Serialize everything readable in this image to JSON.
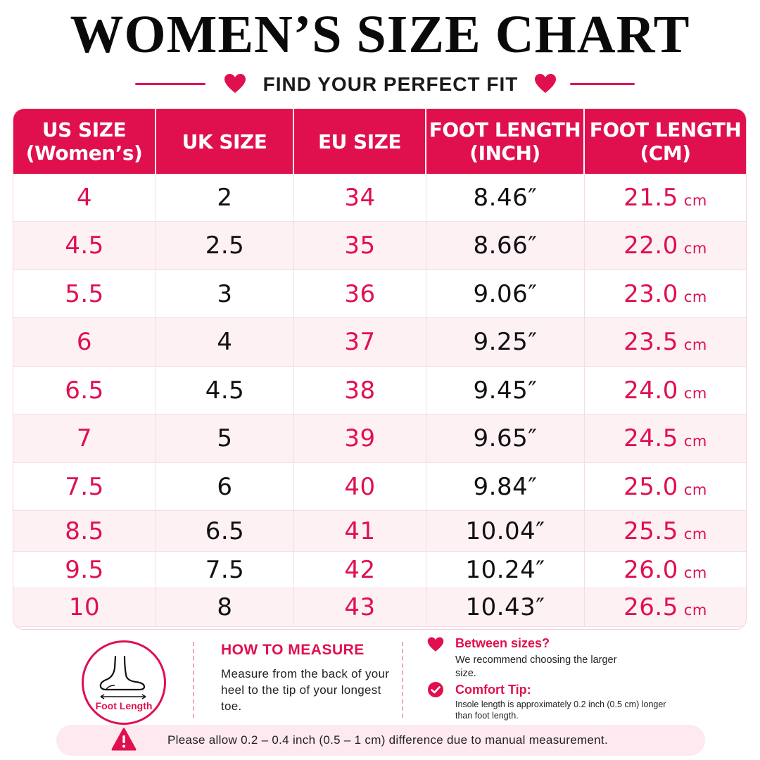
{
  "title": "WOMEN’S SIZE CHART",
  "subtitle": "FIND YOUR PERFECT FIT",
  "colors": {
    "accent": "#e0104f",
    "row_alt": "#fdf1f4",
    "text": "#111111"
  },
  "table": {
    "headers": [
      {
        "line1": "US SIZE",
        "line2": "(Women’s)"
      },
      {
        "line1": "UK SIZE",
        "line2": ""
      },
      {
        "line1": "EU SIZE",
        "line2": ""
      },
      {
        "line1": "FOOT LENGTH",
        "line2": "(INCH)"
      },
      {
        "line1": "FOOT LENGTH",
        "line2": "(CM)"
      }
    ],
    "unit_cm": "cm",
    "rows": [
      {
        "us": "4",
        "uk": "2",
        "eu": "34",
        "inch": "8.46″",
        "cm": "21.5"
      },
      {
        "us": "4.5",
        "uk": "2.5",
        "eu": "35",
        "inch": "8.66″",
        "cm": "22.0"
      },
      {
        "us": "5.5",
        "uk": "3",
        "eu": "36",
        "inch": "9.06″",
        "cm": "23.0"
      },
      {
        "us": "6",
        "uk": "4",
        "eu": "37",
        "inch": "9.25″",
        "cm": "23.5"
      },
      {
        "us": "6.5",
        "uk": "4.5",
        "eu": "38",
        "inch": "9.45″",
        "cm": "24.0"
      },
      {
        "us": "7",
        "uk": "5",
        "eu": "39",
        "inch": "9.65″",
        "cm": "24.5"
      },
      {
        "us": "7.5",
        "uk": "6",
        "eu": "40",
        "inch": "9.84″",
        "cm": "25.0"
      },
      {
        "us": "8.5",
        "uk": "6.5",
        "eu": "41",
        "inch": "10.04″",
        "cm": "25.5"
      },
      {
        "us": "9.5",
        "uk": "7.5",
        "eu": "42",
        "inch": "10.24″",
        "cm": "26.0"
      },
      {
        "us": "10",
        "uk": "8",
        "eu": "43",
        "inch": "10.43″",
        "cm": "26.5"
      }
    ]
  },
  "measure": {
    "icon": "foot-icon",
    "foot_label": "Foot Length",
    "title": "HOW TO MEASURE",
    "text": "Measure from the back of your heel to the tip of your longest toe."
  },
  "tips": [
    {
      "icon": "heart-icon",
      "title": "Between sizes?",
      "text": "We recommend choosing the larger size."
    },
    {
      "icon": "check-circle-icon",
      "title": "Comfort Tip:",
      "text": "Insole length is approximately 0.2 inch (0.5 cm) longer than foot length."
    }
  ],
  "notice": {
    "icon": "warning-icon",
    "text": "Please allow 0.2 – 0.4 inch (0.5 – 1 cm) difference due to manual measurement."
  }
}
